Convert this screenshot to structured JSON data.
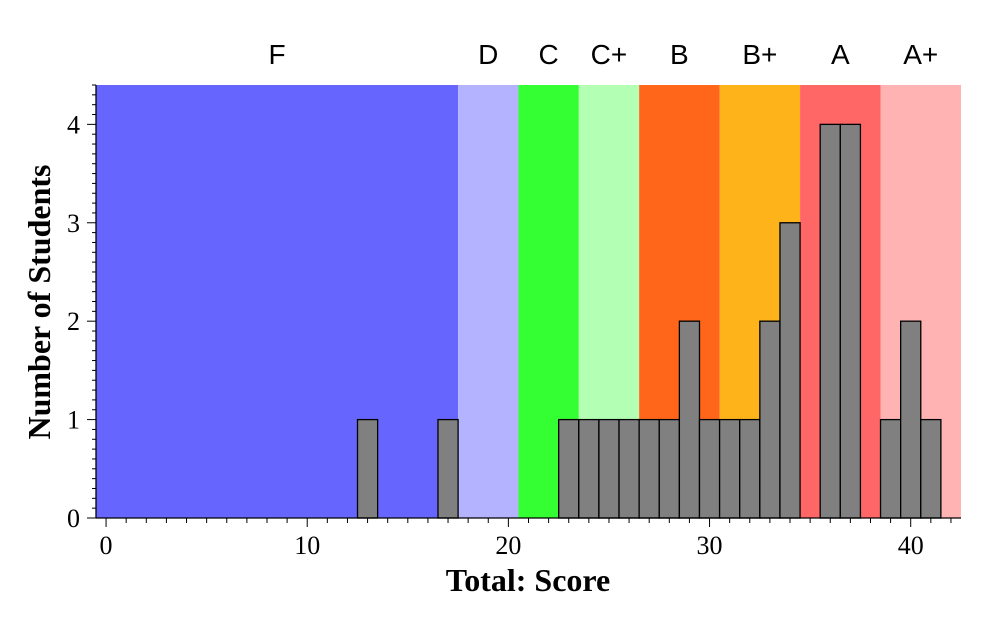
{
  "chart_data": {
    "type": "bar",
    "xlabel": "Total: Score",
    "ylabel": "Number of Students",
    "xlim": [
      -0.5,
      42.5
    ],
    "ylim": [
      0,
      4.4
    ],
    "x_ticks": [
      "0",
      "10",
      "20",
      "30",
      "40"
    ],
    "y_ticks": [
      "0",
      "1",
      "2",
      "3",
      "4"
    ],
    "grid": false,
    "bin_width": 1,
    "bars": [
      {
        "score": 13,
        "count": 1
      },
      {
        "score": 17,
        "count": 1
      },
      {
        "score": 23,
        "count": 1
      },
      {
        "score": 24,
        "count": 1
      },
      {
        "score": 25,
        "count": 1
      },
      {
        "score": 26,
        "count": 1
      },
      {
        "score": 27,
        "count": 1
      },
      {
        "score": 28,
        "count": 1
      },
      {
        "score": 29,
        "count": 2
      },
      {
        "score": 30,
        "count": 1
      },
      {
        "score": 31,
        "count": 1
      },
      {
        "score": 32,
        "count": 1
      },
      {
        "score": 33,
        "count": 2
      },
      {
        "score": 34,
        "count": 3
      },
      {
        "score": 36,
        "count": 4
      },
      {
        "score": 37,
        "count": 4
      },
      {
        "score": 39,
        "count": 1
      },
      {
        "score": 40,
        "count": 2
      },
      {
        "score": 41,
        "count": 1
      }
    ],
    "bar_color": "#808080",
    "grade_bands": [
      {
        "label": "F",
        "from": -0.5,
        "to": 17.5,
        "color": "#6666ff"
      },
      {
        "label": "D",
        "from": 17.5,
        "to": 20.5,
        "color": "#b3b3ff"
      },
      {
        "label": "C",
        "from": 20.5,
        "to": 23.5,
        "color": "#33ff33"
      },
      {
        "label": "C+",
        "from": 23.5,
        "to": 26.5,
        "color": "#b3ffb3"
      },
      {
        "label": "B",
        "from": 26.5,
        "to": 30.5,
        "color": "#ff661a"
      },
      {
        "label": "B+",
        "from": 30.5,
        "to": 34.5,
        "color": "#ffb31a"
      },
      {
        "label": "A",
        "from": 34.5,
        "to": 38.5,
        "color": "#ff6666"
      },
      {
        "label": "A+",
        "from": 38.5,
        "to": 42.5,
        "color": "#ffb3b3"
      }
    ]
  }
}
